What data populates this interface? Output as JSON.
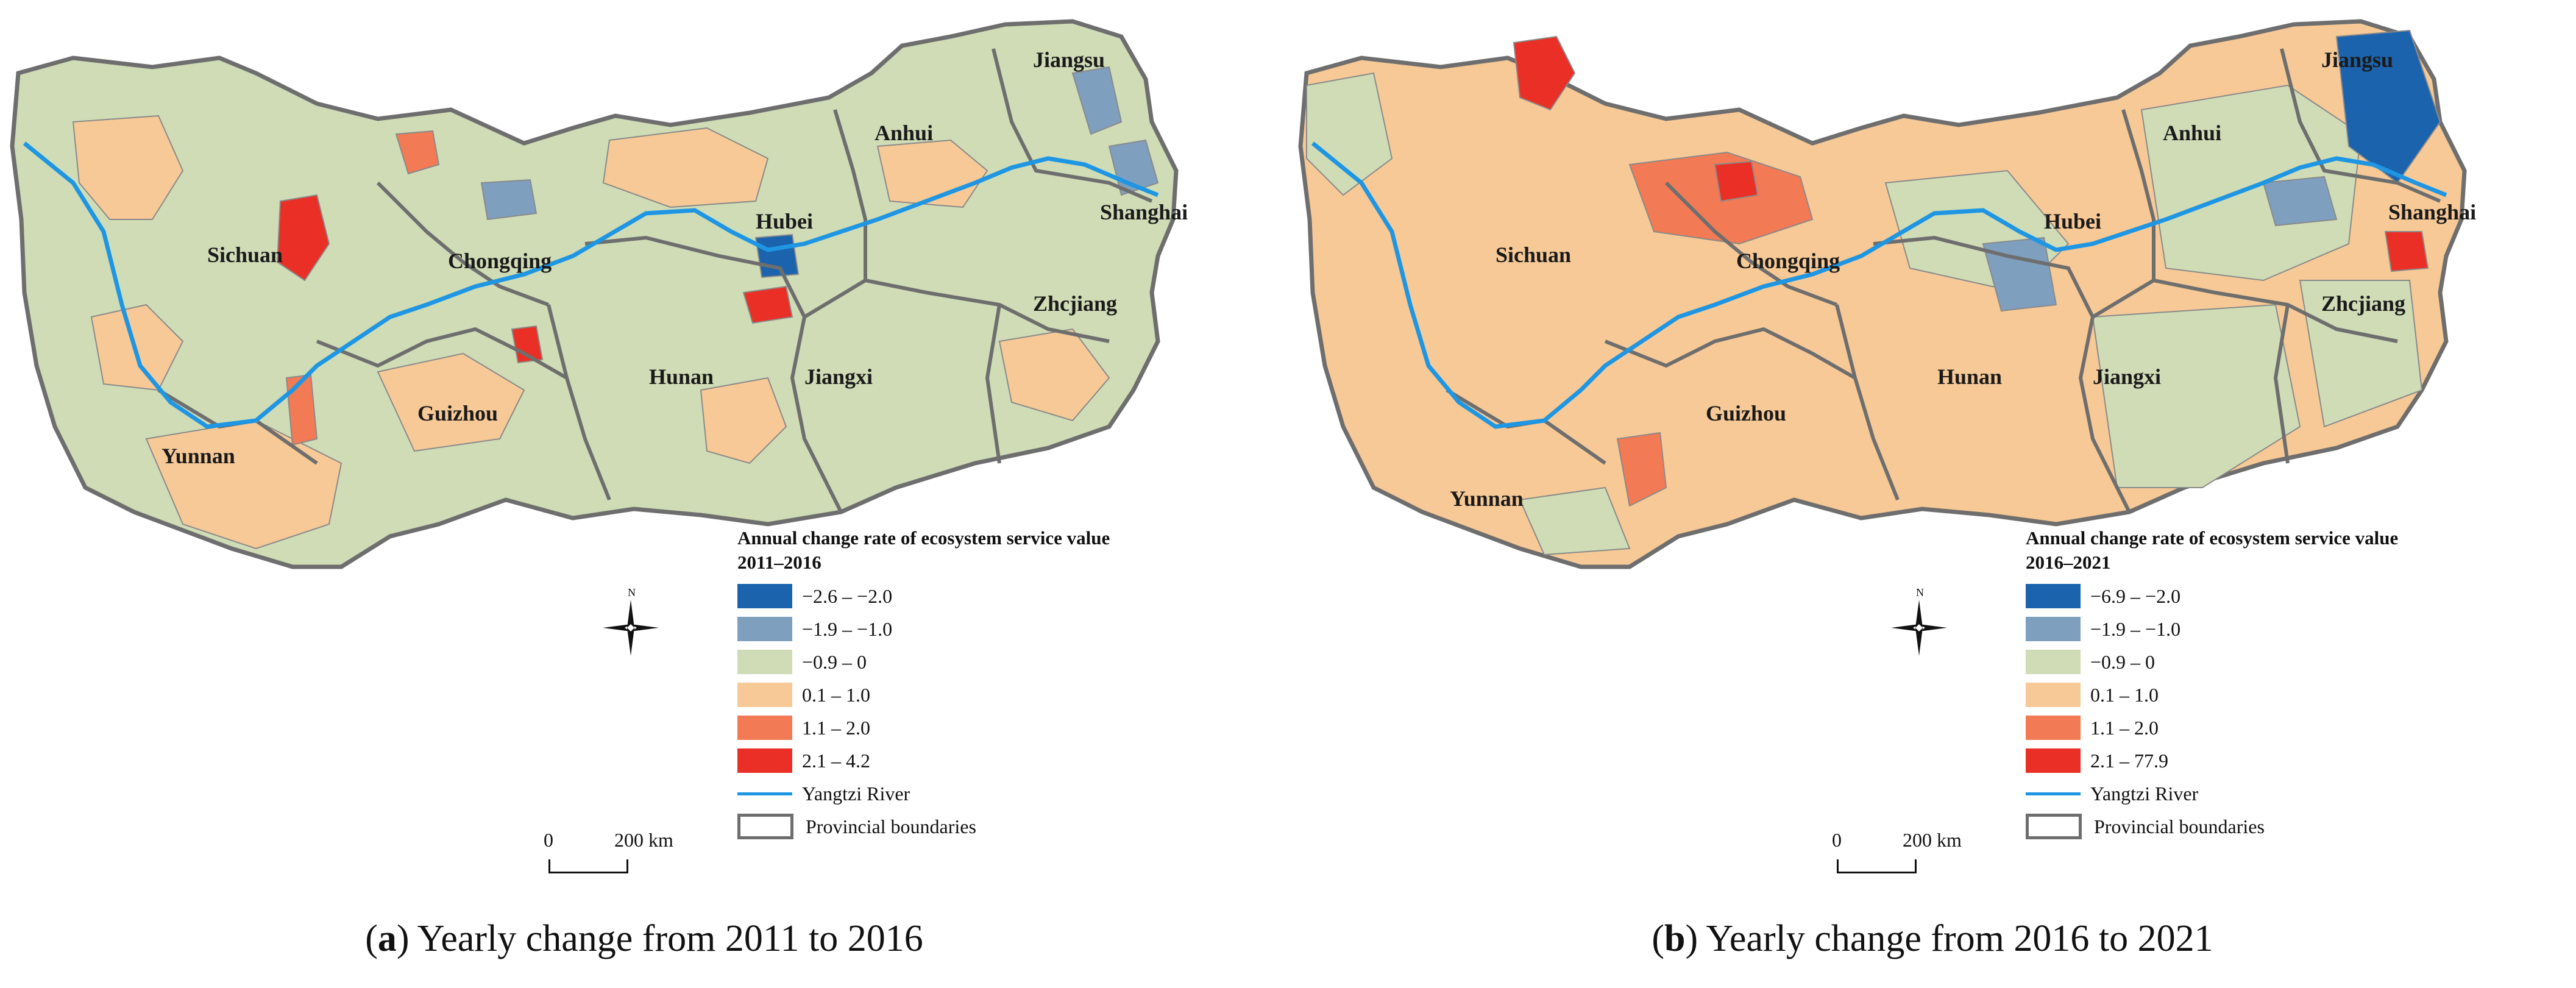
{
  "colors": {
    "class1": "#1b63ad",
    "class2": "#7e9fbe",
    "class3": "#cfdcb6",
    "class4": "#f7c996",
    "class5": "#f27a54",
    "class6": "#ea2f26",
    "river": "#1e96e3",
    "boundary": "#6e6e6e"
  },
  "panels": [
    {
      "id": "a",
      "legend": {
        "title": "Annual change rate of ecosystem service value",
        "period": "2011–2016",
        "classes": [
          "−2.6 – −2.0",
          "−1.9 – −1.0",
          "−0.9 – 0",
          "0.1 – 1.0",
          "1.1 – 2.0",
          "2.1 – 4.2"
        ],
        "river": "Yangtzi River",
        "boundaries": "Provincial boundaries"
      },
      "provinces": [
        "Sichuan",
        "Chongqing",
        "Guizhou",
        "Yunnan",
        "Hunan",
        "Hubei",
        "Jiangxi",
        "Anhui",
        "Jiangsu",
        "Shanghai",
        "Zhcjiang"
      ],
      "scale": {
        "zero": "0",
        "distance": "200 km"
      },
      "compass_north": "N",
      "caption_tag": "a",
      "caption_text": "Yearly change from 2011 to 2016"
    },
    {
      "id": "b",
      "legend": {
        "title": "Annual change rate of ecosystem service value",
        "period": "2016–2021",
        "classes": [
          "−6.9 – −2.0",
          "−1.9 – −1.0",
          "−0.9 – 0",
          "0.1 – 1.0",
          "1.1 – 2.0",
          "2.1 – 77.9"
        ],
        "river": "Yangtzi River",
        "boundaries": "Provincial boundaries"
      },
      "provinces": [
        "Sichuan",
        "Chongqing",
        "Guizhou",
        "Yunnan",
        "Hunan",
        "Hubei",
        "Jiangxi",
        "Anhui",
        "Jiangsu",
        "Shanghai",
        "Zhcjiang"
      ],
      "scale": {
        "zero": "0",
        "distance": "200 km"
      },
      "compass_north": "N",
      "caption_tag": "b",
      "caption_text": "Yearly change from 2016 to 2021"
    }
  ]
}
